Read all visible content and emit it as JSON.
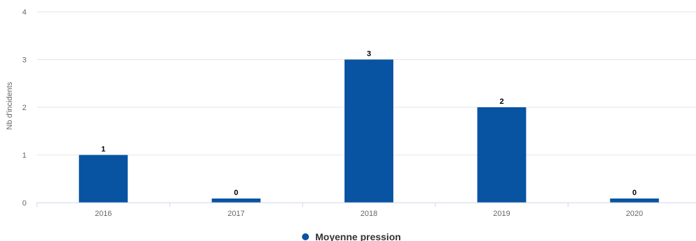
{
  "chart_data": {
    "type": "bar",
    "categories": [
      "2016",
      "2017",
      "2018",
      "2019",
      "2020"
    ],
    "series": [
      {
        "name": "Moyenne pression",
        "values": [
          1,
          0,
          3,
          2,
          0
        ],
        "color": "#0853a2"
      }
    ],
    "data_labels": [
      "1",
      "0",
      "3",
      "2",
      "0"
    ],
    "ylabel": "Nb d'incidents",
    "xlabel": "",
    "ylim": [
      0,
      4
    ],
    "yticks": [
      0,
      1,
      2,
      3,
      4
    ],
    "grid": true,
    "legend_position": "bottom-center",
    "colors": {
      "grid": "#e6e6e6",
      "axis": "#ccd6eb",
      "bar": "#0853a2"
    }
  }
}
